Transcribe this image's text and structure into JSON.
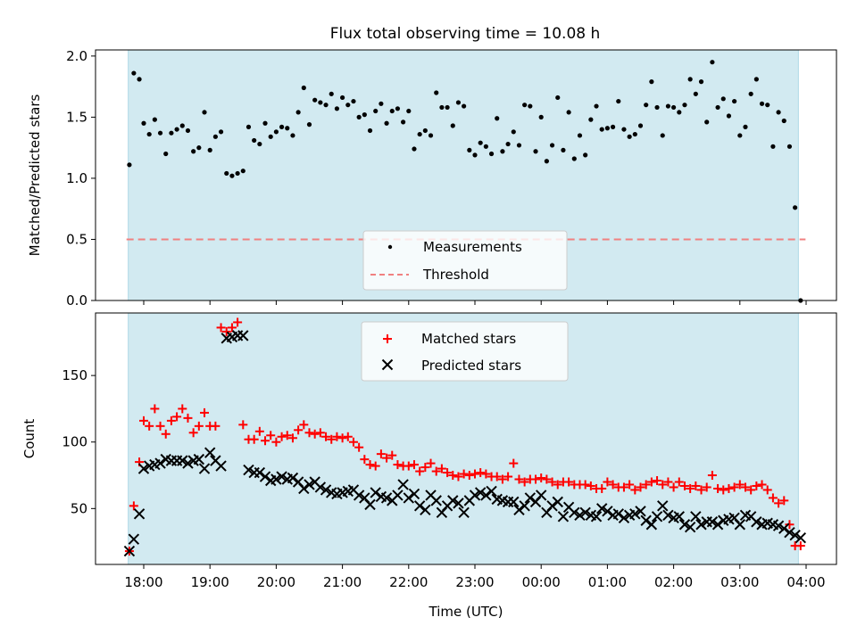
{
  "title": "Flux total observing time = 10.08 h",
  "chart_data": [
    {
      "type": "scatter",
      "ylabel": "Matched/Predicted stars",
      "ylim": [
        0,
        2.05
      ],
      "yticks": [
        0.0,
        0.5,
        1.0,
        1.5,
        2.0
      ],
      "ytick_labels": [
        "0.0",
        "0.5",
        "1.0",
        "1.5",
        "2.0"
      ],
      "shaded_span": [
        "17:46",
        "03:53"
      ],
      "threshold": 0.5,
      "legend": [
        "Measurements",
        "Threshold"
      ],
      "legend_position": "lower center",
      "series": [
        {
          "name": "Measurements",
          "x": [
            "17:47",
            "17:51",
            "17:56",
            "18:00",
            "18:05",
            "18:10",
            "18:15",
            "18:20",
            "18:25",
            "18:30",
            "18:35",
            "18:40",
            "18:45",
            "18:50",
            "18:55",
            "19:00",
            "19:05",
            "19:10",
            "19:15",
            "19:20",
            "19:25",
            "19:30",
            "19:35",
            "19:40",
            "19:45",
            "19:50",
            "19:55",
            "20:00",
            "20:05",
            "20:10",
            "20:15",
            "20:20",
            "20:25",
            "20:30",
            "20:35",
            "20:40",
            "20:45",
            "20:50",
            "20:55",
            "21:00",
            "21:05",
            "21:10",
            "21:15",
            "21:20",
            "21:25",
            "21:30",
            "21:35",
            "21:40",
            "21:45",
            "21:50",
            "21:55",
            "22:00",
            "22:05",
            "22:10",
            "22:15",
            "22:20",
            "22:25",
            "22:30",
            "22:35",
            "22:40",
            "22:45",
            "22:50",
            "22:55",
            "23:00",
            "23:05",
            "23:10",
            "23:15",
            "23:20",
            "23:25",
            "23:30",
            "23:35",
            "23:40",
            "23:45",
            "23:50",
            "23:55",
            "00:00",
            "00:05",
            "00:10",
            "00:15",
            "00:20",
            "00:25",
            "00:30",
            "00:35",
            "00:40",
            "00:45",
            "00:50",
            "00:55",
            "01:00",
            "01:05",
            "01:10",
            "01:15",
            "01:20",
            "01:25",
            "01:30",
            "01:35",
            "01:40",
            "01:45",
            "01:50",
            "01:55",
            "02:00",
            "02:05",
            "02:10",
            "02:15",
            "02:20",
            "02:25",
            "02:30",
            "02:35",
            "02:40",
            "02:45",
            "02:50",
            "02:55",
            "03:00",
            "03:05",
            "03:10",
            "03:15",
            "03:20",
            "03:25",
            "03:30",
            "03:35",
            "03:40",
            "03:45",
            "03:50",
            "03:55"
          ],
          "y": [
            1.11,
            1.86,
            1.81,
            1.45,
            1.36,
            1.48,
            1.37,
            1.2,
            1.37,
            1.4,
            1.43,
            1.39,
            1.22,
            1.25,
            1.54,
            1.23,
            1.34,
            1.38,
            1.04,
            1.02,
            1.04,
            1.06,
            1.42,
            1.31,
            1.28,
            1.45,
            1.34,
            1.38,
            1.42,
            1.41,
            1.35,
            1.54,
            1.74,
            1.44,
            1.64,
            1.62,
            1.6,
            1.69,
            1.57,
            1.66,
            1.6,
            1.63,
            1.5,
            1.52,
            1.39,
            1.55,
            1.61,
            1.45,
            1.55,
            1.57,
            1.46,
            1.55,
            1.24,
            1.36,
            1.39,
            1.35,
            1.7,
            1.58,
            1.58,
            1.43,
            1.62,
            1.59,
            1.23,
            1.19,
            1.29,
            1.26,
            1.2,
            1.49,
            1.22,
            1.28,
            1.38,
            1.27,
            1.6,
            1.59,
            1.22,
            1.5,
            1.14,
            1.27,
            1.66,
            1.23,
            1.54,
            1.16,
            1.35,
            1.19,
            1.48,
            1.59,
            1.4,
            1.41,
            1.42,
            1.63,
            1.4,
            1.34,
            1.36,
            1.43,
            1.6,
            1.79,
            1.58,
            1.35,
            1.59,
            1.58,
            1.54,
            1.6,
            1.81,
            1.69,
            1.79,
            1.46,
            1.95,
            1.58,
            1.65,
            1.51,
            1.63,
            1.35,
            1.42,
            1.69,
            1.81,
            1.61,
            1.6,
            1.26,
            1.54,
            1.47,
            1.26,
            0.76,
            0.0
          ]
        }
      ]
    },
    {
      "type": "scatter",
      "xlabel": "Time (UTC)",
      "ylabel": "Count",
      "ylim": [
        8,
        197
      ],
      "yticks": [
        50,
        100,
        150
      ],
      "ytick_labels": [
        "50",
        "100",
        "150"
      ],
      "x_tick_labels": [
        "18:00",
        "19:00",
        "20:00",
        "21:00",
        "22:00",
        "23:00",
        "00:00",
        "01:00",
        "02:00",
        "03:00",
        "04:00"
      ],
      "legend": [
        "Matched stars",
        "Predicted stars"
      ],
      "legend_position": "upper center",
      "series": [
        {
          "name": "Matched stars",
          "x": [
            "17:47",
            "17:51",
            "17:56",
            "18:00",
            "18:05",
            "18:10",
            "18:15",
            "18:20",
            "18:25",
            "18:30",
            "18:35",
            "18:40",
            "18:45",
            "18:50",
            "18:55",
            "19:00",
            "19:05",
            "19:10",
            "19:15",
            "19:20",
            "19:25",
            "19:30",
            "19:35",
            "19:40",
            "19:45",
            "19:50",
            "19:55",
            "20:00",
            "20:05",
            "20:10",
            "20:15",
            "20:20",
            "20:25",
            "20:30",
            "20:35",
            "20:40",
            "20:45",
            "20:50",
            "20:55",
            "21:00",
            "21:05",
            "21:10",
            "21:15",
            "21:20",
            "21:25",
            "21:30",
            "21:35",
            "21:40",
            "21:45",
            "21:50",
            "21:55",
            "22:00",
            "22:05",
            "22:10",
            "22:15",
            "22:20",
            "22:25",
            "22:30",
            "22:35",
            "22:40",
            "22:45",
            "22:50",
            "22:55",
            "23:00",
            "23:05",
            "23:10",
            "23:15",
            "23:20",
            "23:25",
            "23:30",
            "23:35",
            "23:40",
            "23:45",
            "23:50",
            "23:55",
            "00:00",
            "00:05",
            "00:10",
            "00:15",
            "00:20",
            "00:25",
            "00:30",
            "00:35",
            "00:40",
            "00:45",
            "00:50",
            "00:55",
            "01:00",
            "01:05",
            "01:10",
            "01:15",
            "01:20",
            "01:25",
            "01:30",
            "01:35",
            "01:40",
            "01:45",
            "01:50",
            "01:55",
            "02:00",
            "02:05",
            "02:10",
            "02:15",
            "02:20",
            "02:25",
            "02:30",
            "02:35",
            "02:40",
            "02:45",
            "02:50",
            "02:55",
            "03:00",
            "03:05",
            "03:10",
            "03:15",
            "03:20",
            "03:25",
            "03:30",
            "03:35",
            "03:40",
            "03:45",
            "03:50",
            "03:55"
          ],
          "y": [
            18,
            52,
            85,
            116,
            112,
            125,
            112,
            106,
            116,
            119,
            125,
            118,
            107,
            112,
            122,
            112,
            112,
            186,
            183,
            186,
            190,
            113,
            102,
            102,
            108,
            101,
            105,
            100,
            104,
            105,
            103,
            109,
            113,
            107,
            106,
            107,
            104,
            102,
            104,
            103,
            104,
            100,
            96,
            87,
            83,
            82,
            91,
            88,
            90,
            83,
            82,
            82,
            83,
            78,
            81,
            84,
            78,
            80,
            77,
            75,
            74,
            76,
            75,
            76,
            77,
            76,
            74,
            74,
            72,
            74,
            84,
            72,
            70,
            72,
            72,
            73,
            72,
            70,
            68,
            70,
            70,
            68,
            68,
            68,
            67,
            65,
            65,
            70,
            68,
            66,
            66,
            68,
            64,
            66,
            68,
            70,
            71,
            68,
            70,
            66,
            70,
            67,
            65,
            67,
            64,
            66,
            75,
            65,
            64,
            65,
            66,
            68,
            66,
            64,
            67,
            68,
            64,
            58,
            54,
            56,
            38,
            22,
            22
          ]
        },
        {
          "name": "Predicted stars",
          "x": [
            "17:47",
            "17:51",
            "17:56",
            "18:00",
            "18:05",
            "18:10",
            "18:15",
            "18:20",
            "18:25",
            "18:30",
            "18:35",
            "18:40",
            "18:45",
            "18:50",
            "18:55",
            "19:00",
            "19:05",
            "19:10",
            "19:15",
            "19:20",
            "19:25",
            "19:30",
            "19:35",
            "19:40",
            "19:45",
            "19:50",
            "19:55",
            "20:00",
            "20:05",
            "20:10",
            "20:15",
            "20:20",
            "20:25",
            "20:30",
            "20:35",
            "20:40",
            "20:45",
            "20:50",
            "20:55",
            "21:00",
            "21:05",
            "21:10",
            "21:15",
            "21:20",
            "21:25",
            "21:30",
            "21:35",
            "21:40",
            "21:45",
            "21:50",
            "21:55",
            "22:00",
            "22:05",
            "22:10",
            "22:15",
            "22:20",
            "22:25",
            "22:30",
            "22:35",
            "22:40",
            "22:45",
            "22:50",
            "22:55",
            "23:00",
            "23:05",
            "23:10",
            "23:15",
            "23:20",
            "23:25",
            "23:30",
            "23:35",
            "23:40",
            "23:45",
            "23:50",
            "23:55",
            "00:00",
            "00:05",
            "00:10",
            "00:15",
            "00:20",
            "00:25",
            "00:30",
            "00:35",
            "00:40",
            "00:45",
            "00:50",
            "00:55",
            "01:00",
            "01:05",
            "01:10",
            "01:15",
            "01:20",
            "01:25",
            "01:30",
            "01:35",
            "01:40",
            "01:45",
            "01:50",
            "01:55",
            "02:00",
            "02:05",
            "02:10",
            "02:15",
            "02:20",
            "02:25",
            "02:30",
            "02:35",
            "02:40",
            "02:45",
            "02:50",
            "02:55",
            "03:00",
            "03:05",
            "03:10",
            "03:15",
            "03:20",
            "03:25",
            "03:30",
            "03:35",
            "03:40",
            "03:45",
            "03:50",
            "03:55"
          ],
          "y": [
            18,
            27,
            46,
            80,
            82,
            83,
            84,
            87,
            86,
            86,
            86,
            84,
            86,
            87,
            80,
            92,
            86,
            82,
            178,
            179,
            180,
            180,
            79,
            77,
            77,
            74,
            71,
            72,
            74,
            72,
            73,
            70,
            65,
            68,
            70,
            66,
            64,
            62,
            61,
            62,
            63,
            64,
            60,
            58,
            53,
            62,
            59,
            58,
            56,
            60,
            68,
            58,
            61,
            52,
            49,
            60,
            56,
            47,
            52,
            56,
            54,
            47,
            56,
            60,
            62,
            60,
            63,
            57,
            56,
            55,
            55,
            49,
            52,
            58,
            55,
            60,
            47,
            52,
            55,
            44,
            51,
            47,
            45,
            47,
            45,
            44,
            50,
            48,
            45,
            46,
            43,
            45,
            46,
            48,
            41,
            38,
            44,
            52,
            45,
            43,
            44,
            38,
            36,
            44,
            38,
            40,
            40,
            38,
            41,
            42,
            43,
            38,
            45,
            44,
            40,
            38,
            39,
            38,
            37,
            35,
            32,
            30,
            28
          ]
        }
      ]
    }
  ],
  "colors": {
    "shade": "#add8e6",
    "measurement": "#000000",
    "threshold": "#f08080",
    "matched": "#ff0000",
    "predicted": "#000000"
  }
}
